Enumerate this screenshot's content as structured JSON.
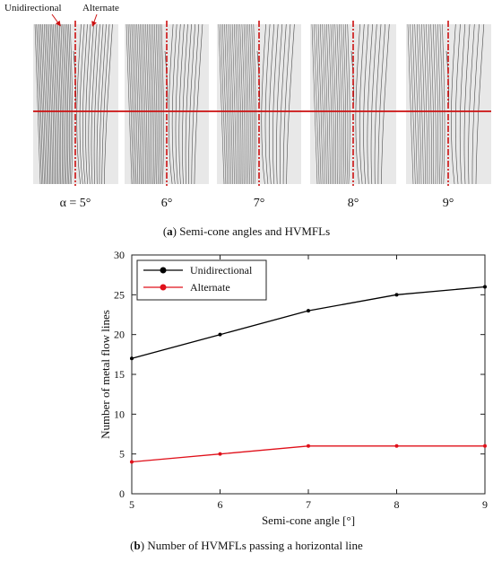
{
  "top_panel": {
    "annotations": {
      "unidirectional": "Unidirectional",
      "alternate": "Alternate"
    },
    "panel_labels": [
      "α = 5°",
      "6°",
      "7°",
      "8°",
      "9°"
    ],
    "caption_letter": "a",
    "caption_text": "Semi-cone angles and HVMFLs",
    "colors": {
      "flow_line": "#3a3a3a",
      "background": "#e8e8e8",
      "centerline": "#cc1111",
      "horizontal_line": "#cc1111"
    }
  },
  "chart_data": {
    "type": "line",
    "xlabel": "Semi-cone angle [°]",
    "ylabel": "Number of metal flow lines",
    "x": [
      5,
      6,
      7,
      8,
      9
    ],
    "xlim": [
      5,
      9
    ],
    "ylim": [
      0,
      30
    ],
    "xticks": [
      "5",
      "6",
      "7",
      "8",
      "9"
    ],
    "yticks": [
      "0",
      "5",
      "10",
      "15",
      "20",
      "25",
      "30"
    ],
    "grid": false,
    "legend_position": "top-left",
    "series": [
      {
        "name": "Unidirectional",
        "values": [
          17,
          20,
          23,
          25,
          26
        ],
        "color": "#000000"
      },
      {
        "name": "Alternate",
        "values": [
          4,
          5,
          6,
          6,
          6
        ],
        "color": "#e0101a"
      }
    ],
    "caption_letter": "b",
    "caption_text": "Number of HVMFLs passing a horizontal line"
  }
}
